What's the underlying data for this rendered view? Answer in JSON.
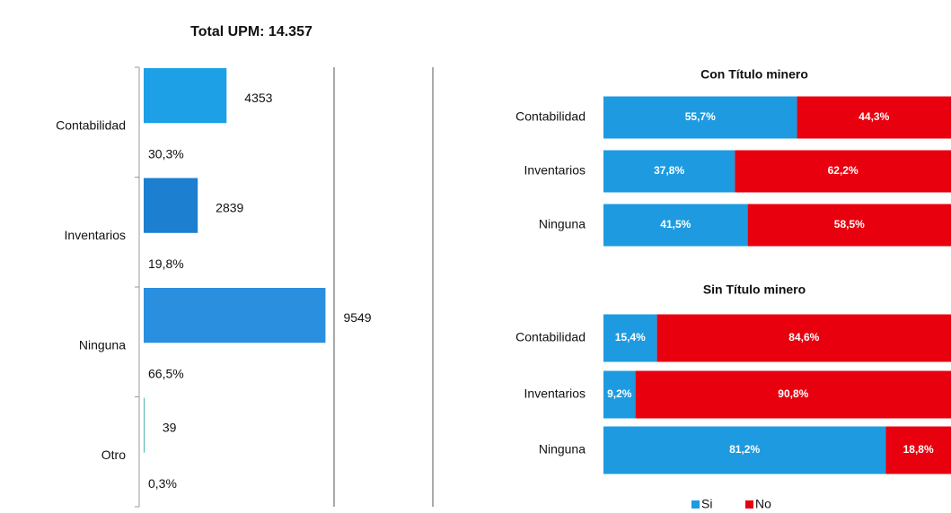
{
  "chart_data": [
    {
      "type": "hbar",
      "title": "Total UPM: 14.357",
      "categories": [
        "Contabilidad",
        "Inventarios",
        "Ninguna",
        "Otro"
      ],
      "values": [
        4353,
        2839,
        9549,
        39
      ],
      "shares": [
        30.3,
        19.8,
        66.5,
        0.3
      ],
      "share_labels": [
        "30,3%",
        "19,8%",
        "66,5%",
        "0,3%"
      ],
      "colors": [
        "#1ea0e6",
        "#1c7fd0",
        "#2a8fde",
        "#2aa6a0"
      ],
      "xlim": [
        0,
        10000
      ]
    },
    {
      "type": "stacked_hbar",
      "title": "Con Título minero",
      "categories": [
        "Contabilidad",
        "Inventarios",
        "Ninguna"
      ],
      "series": [
        {
          "values": [
            55.7,
            37.8,
            41.5
          ],
          "value_labels": [
            "55,7%",
            "37,8%",
            "41,5%"
          ]
        },
        {
          "values": [
            44.3,
            62.2,
            58.5
          ],
          "value_labels": [
            "44,3%",
            "62,2%",
            "58,5%"
          ]
        }
      ],
      "xlim": [
        0,
        100
      ]
    },
    {
      "type": "stacked_hbar",
      "title": "Sin Título minero",
      "categories": [
        "Contabilidad",
        "Inventarios",
        "Ninguna"
      ],
      "series": [
        {
          "values": [
            15.4,
            9.2,
            81.2
          ],
          "value_labels": [
            "15,4%",
            "9,2%",
            "81,2%"
          ]
        },
        {
          "values": [
            84.6,
            90.8,
            18.8
          ],
          "value_labels": [
            "84,6%",
            "90,8%",
            "18,8%"
          ]
        }
      ],
      "xlim": [
        0,
        100
      ]
    }
  ],
  "legend": [
    {
      "name": "Si",
      "color": "#1e9be0"
    },
    {
      "name": "No",
      "color": "#e8000e"
    }
  ]
}
